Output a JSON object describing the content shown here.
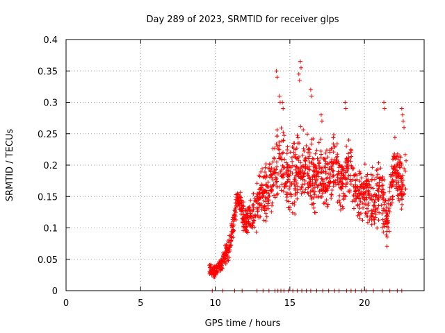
{
  "chart_data": {
    "type": "scatter",
    "title": "Day 289 of 2023, SRMTID for receiver glps",
    "xlabel": "GPS time / hours",
    "ylabel": "SRMTID / TECUs",
    "xlim": [
      0,
      24
    ],
    "ylim": [
      0,
      0.4
    ],
    "xticks": [
      0,
      5,
      10,
      15,
      20
    ],
    "yticks": [
      0,
      0.05,
      0.1,
      0.15,
      0.2,
      0.25,
      0.3,
      0.35,
      0.4
    ],
    "xtick_labels": [
      "0",
      "5",
      "10",
      "15",
      "20"
    ],
    "ytick_labels": [
      "0",
      "0.05",
      "0.1",
      "0.15",
      "0.2",
      "0.25",
      "0.3",
      "0.35",
      "0.4"
    ],
    "grid": true,
    "marker": "+",
    "color": "#ff0000",
    "trend": {
      "x": [
        9.6,
        10.0,
        10.5,
        11.0,
        11.5,
        12.0,
        12.5,
        13.0,
        13.5,
        14.0,
        14.5,
        15.0,
        15.5,
        16.0,
        16.5,
        17.0,
        17.5,
        18.0,
        18.5,
        19.0,
        19.5,
        20.0,
        20.5,
        21.0,
        21.5,
        22.0,
        22.5,
        22.8
      ],
      "y": [
        0.035,
        0.03,
        0.045,
        0.075,
        0.15,
        0.11,
        0.12,
        0.145,
        0.16,
        0.19,
        0.2,
        0.17,
        0.19,
        0.2,
        0.18,
        0.19,
        0.17,
        0.2,
        0.17,
        0.2,
        0.15,
        0.16,
        0.14,
        0.17,
        0.11,
        0.2,
        0.16,
        0.19
      ],
      "spread": [
        0.01,
        0.01,
        0.015,
        0.02,
        0.02,
        0.025,
        0.03,
        0.04,
        0.05,
        0.06,
        0.06,
        0.06,
        0.06,
        0.05,
        0.05,
        0.05,
        0.05,
        0.05,
        0.05,
        0.04,
        0.04,
        0.04,
        0.05,
        0.05,
        0.04,
        0.05,
        0.05,
        0.05
      ]
    },
    "peaks": [
      [
        14.1,
        0.35
      ],
      [
        14.3,
        0.31
      ],
      [
        14.5,
        0.3
      ],
      [
        15.7,
        0.365
      ],
      [
        15.6,
        0.345
      ],
      [
        16.4,
        0.32
      ],
      [
        17.1,
        0.28
      ],
      [
        18.7,
        0.3
      ],
      [
        21.3,
        0.3
      ],
      [
        22.5,
        0.29
      ],
      [
        22.6,
        0.27
      ]
    ],
    "zero_marks_x": [
      9.8,
      10.5,
      11.3,
      11.8,
      12.8,
      13.2,
      13.6,
      14.0,
      14.2,
      14.4,
      14.6,
      14.9,
      15.2,
      15.5,
      15.8,
      16.1,
      16.4,
      16.8,
      17.2,
      17.6,
      18.0,
      18.3,
      18.8,
      19.1,
      19.4,
      19.8,
      20.1,
      20.6,
      21.2,
      21.7,
      22.2,
      22.5
    ]
  }
}
